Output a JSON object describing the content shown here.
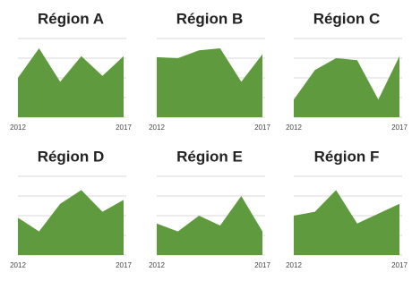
{
  "chart_data": [
    {
      "type": "area",
      "title": "Région A",
      "categories": [
        "2012",
        null,
        null,
        null,
        null,
        "2017"
      ],
      "values": [
        2.0,
        3.5,
        1.8,
        3.1,
        2.1,
        3.1
      ],
      "color": "#5f9a3f",
      "ylim": [
        0,
        4
      ],
      "yticks": [
        0,
        1,
        2,
        3,
        4
      ],
      "grid": true
    },
    {
      "type": "area",
      "title": "Région B",
      "categories": [
        "2012",
        null,
        null,
        null,
        null,
        "2017"
      ],
      "values": [
        3.05,
        3.0,
        3.4,
        3.5,
        1.8,
        3.2
      ],
      "color": "#5f9a3f",
      "ylim": [
        0,
        4
      ],
      "yticks": [
        0,
        1,
        2,
        3,
        4
      ],
      "grid": true
    },
    {
      "type": "area",
      "title": "Région C",
      "categories": [
        "2012",
        null,
        null,
        null,
        null,
        "2017"
      ],
      "values": [
        0.9,
        2.4,
        3.0,
        2.9,
        0.9,
        3.1
      ],
      "color": "#5f9a3f",
      "ylim": [
        0,
        4
      ],
      "yticks": [
        0,
        1,
        2,
        3,
        4
      ],
      "grid": true
    },
    {
      "type": "area",
      "title": "Région D",
      "categories": [
        "2012",
        null,
        null,
        null,
        null,
        "2017"
      ],
      "values": [
        1.9,
        1.2,
        2.6,
        3.3,
        2.2,
        2.8
      ],
      "color": "#5f9a3f",
      "ylim": [
        0,
        4
      ],
      "yticks": [
        0,
        1,
        2,
        3,
        4
      ],
      "grid": true
    },
    {
      "type": "area",
      "title": "Région E",
      "categories": [
        "2012",
        null,
        null,
        null,
        null,
        "2017"
      ],
      "values": [
        1.6,
        1.2,
        2.0,
        1.5,
        3.0,
        1.2
      ],
      "color": "#5f9a3f",
      "ylim": [
        0,
        4
      ],
      "yticks": [
        0,
        1,
        2,
        3,
        4
      ],
      "grid": true
    },
    {
      "type": "area",
      "title": "Région F",
      "categories": [
        "2012",
        null,
        null,
        null,
        null,
        "2017"
      ],
      "values": [
        2.0,
        2.2,
        3.3,
        1.6,
        2.1,
        2.6
      ],
      "color": "#5f9a3f",
      "ylim": [
        0,
        4
      ],
      "yticks": [
        0,
        1,
        2,
        3,
        4
      ],
      "grid": true
    }
  ]
}
